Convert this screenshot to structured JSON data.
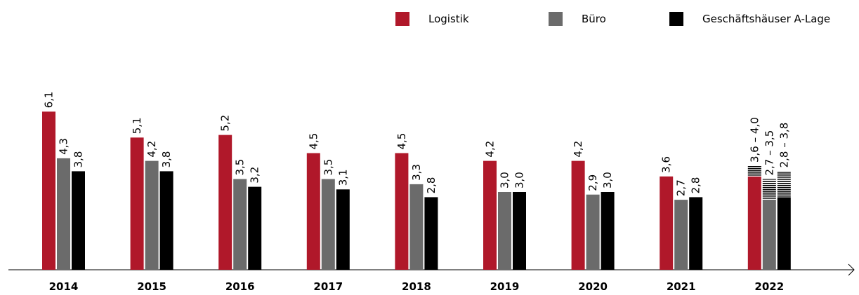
{
  "chart_data": {
    "type": "bar",
    "categories": [
      "2014",
      "2015",
      "2016",
      "2017",
      "2018",
      "2019",
      "2020",
      "2021",
      "2022"
    ],
    "series": [
      {
        "name": "Logistik",
        "color": "#b0182a",
        "values": [
          6.1,
          5.1,
          5.2,
          4.5,
          4.5,
          4.2,
          4.2,
          3.6,
          3.6
        ],
        "highs": [
          null,
          null,
          null,
          null,
          null,
          null,
          null,
          null,
          4.0
        ],
        "value_labels": [
          "6,1",
          "5,1",
          "5,2",
          "4,5",
          "4,5",
          "4,2",
          "4,2",
          "3,6",
          "3,6 – 4,0"
        ]
      },
      {
        "name": "Büro",
        "color": "#6b6b6b",
        "values": [
          4.3,
          4.2,
          3.5,
          3.5,
          3.3,
          3.0,
          2.9,
          2.7,
          2.7
        ],
        "highs": [
          null,
          null,
          null,
          null,
          null,
          null,
          null,
          null,
          3.5
        ],
        "value_labels": [
          "4,3",
          "4,2",
          "3,5",
          "3,5",
          "3,3",
          "3,0",
          "2,9",
          "2,7",
          "2,7 – 3,5"
        ]
      },
      {
        "name": "Geschäftshäuser A-Lage",
        "color": "#000000",
        "values": [
          3.8,
          3.8,
          3.2,
          3.1,
          2.8,
          3.0,
          3.0,
          2.8,
          2.8
        ],
        "highs": [
          null,
          null,
          null,
          null,
          null,
          null,
          null,
          null,
          3.8
        ],
        "value_labels": [
          "3,8",
          "3,8",
          "3,2",
          "3,1",
          "2,8",
          "3,0",
          "3,0",
          "2,8",
          "2,8 – 3,8"
        ]
      }
    ]
  }
}
